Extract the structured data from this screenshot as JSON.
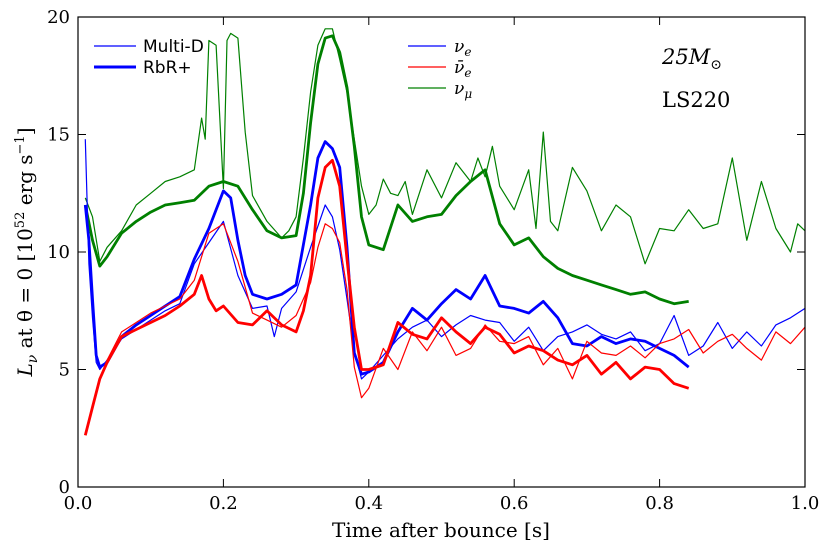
{
  "chart_data": {
    "type": "line",
    "title": "",
    "xlabel": "Time after bounce [s]",
    "ylabel": "L_ν at θ = 0 [10^52 erg s^-1]",
    "ylabel_parts": {
      "L": "L",
      "sub": "ν",
      "mid": " at θ = 0 [10",
      "sup": "52",
      "unit": " erg s",
      "sup2": "−1",
      "end": "]"
    },
    "xlim": [
      0,
      1.0
    ],
    "ylim": [
      0,
      20
    ],
    "xticks": [
      "0.0",
      "0.2",
      "0.4",
      "0.6",
      "0.8",
      "1.0"
    ],
    "xtick_values": [
      0,
      0.2,
      0.4,
      0.6,
      0.8,
      1.0
    ],
    "yticks": [
      "0",
      "5",
      "10",
      "15",
      "20"
    ],
    "ytick_values": [
      0,
      5,
      10,
      15,
      20
    ],
    "legend_style": {
      "location": "top-left",
      "entries": [
        {
          "label": "Multi-D",
          "style": "thin"
        },
        {
          "label": "RbR+",
          "style": "thick"
        }
      ]
    },
    "legend_species": {
      "location": "top-center",
      "entries": [
        {
          "label": "ν_e",
          "base": "ν",
          "sub": "e",
          "bar": false,
          "color": "#0000ff"
        },
        {
          "label": "ν̄_e",
          "base": "ν̄",
          "sub": "e",
          "bar": true,
          "color": "#ff0000"
        },
        {
          "label": "ν_μ",
          "base": "ν",
          "sub": "μ",
          "bar": false,
          "color": "#008000"
        }
      ]
    },
    "annotations": [
      {
        "text": "25M⊙",
        "main": "25M",
        "sub": "⊙"
      },
      {
        "text": "LS220"
      }
    ],
    "series": [
      {
        "name": "ν_μ Multi-D",
        "species": "nu_mu",
        "model": "Multi-D",
        "color": "#008000",
        "width": 1.2,
        "x": [
          0.01,
          0.015,
          0.02,
          0.03,
          0.04,
          0.06,
          0.08,
          0.1,
          0.12,
          0.14,
          0.16,
          0.17,
          0.175,
          0.18,
          0.19,
          0.2,
          0.205,
          0.21,
          0.22,
          0.23,
          0.24,
          0.26,
          0.28,
          0.29,
          0.3,
          0.31,
          0.32,
          0.33,
          0.34,
          0.35,
          0.36,
          0.37,
          0.38,
          0.39,
          0.4,
          0.41,
          0.42,
          0.43,
          0.44,
          0.45,
          0.46,
          0.48,
          0.5,
          0.52,
          0.54,
          0.55,
          0.56,
          0.57,
          0.58,
          0.6,
          0.62,
          0.63,
          0.64,
          0.65,
          0.66,
          0.68,
          0.7,
          0.72,
          0.74,
          0.76,
          0.78,
          0.8,
          0.82,
          0.84,
          0.86,
          0.88,
          0.9,
          0.92,
          0.94,
          0.96,
          0.98,
          0.99,
          1.0
        ],
        "y": [
          12.3,
          11.9,
          11.5,
          9.6,
          10.2,
          10.9,
          12.0,
          12.5,
          13.0,
          13.2,
          13.5,
          15.7,
          14.8,
          19.0,
          18.8,
          12.7,
          19.0,
          19.3,
          19.1,
          15.1,
          12.4,
          11.3,
          10.6,
          10.9,
          11.5,
          14.0,
          16.8,
          18.8,
          19.5,
          19.5,
          18.2,
          16.8,
          14.8,
          12.8,
          11.6,
          12.0,
          13.1,
          12.5,
          12.4,
          13.0,
          11.6,
          13.5,
          12.3,
          13.8,
          13.0,
          14.0,
          13.2,
          14.5,
          12.8,
          11.8,
          13.5,
          11.0,
          15.1,
          11.3,
          10.9,
          13.6,
          12.6,
          10.9,
          12.0,
          11.5,
          9.5,
          11.0,
          10.9,
          11.8,
          11.0,
          11.2,
          14.0,
          10.5,
          13.0,
          11.0,
          10.0,
          11.2,
          10.9
        ]
      },
      {
        "name": "ν_μ RbR+",
        "species": "nu_mu",
        "model": "RbR+",
        "color": "#008000",
        "width": 2.8,
        "x": [
          0.01,
          0.02,
          0.03,
          0.04,
          0.06,
          0.08,
          0.1,
          0.12,
          0.14,
          0.16,
          0.18,
          0.2,
          0.22,
          0.24,
          0.26,
          0.28,
          0.3,
          0.31,
          0.32,
          0.33,
          0.34,
          0.35,
          0.36,
          0.37,
          0.38,
          0.39,
          0.4,
          0.42,
          0.44,
          0.46,
          0.48,
          0.5,
          0.52,
          0.54,
          0.56,
          0.58,
          0.6,
          0.62,
          0.64,
          0.66,
          0.68,
          0.7,
          0.72,
          0.74,
          0.76,
          0.78,
          0.8,
          0.82,
          0.84
        ],
        "y": [
          12.0,
          10.5,
          9.4,
          9.8,
          10.8,
          11.3,
          11.7,
          12.0,
          12.1,
          12.2,
          12.8,
          13.0,
          12.8,
          11.8,
          10.9,
          10.6,
          10.7,
          12.5,
          15.5,
          18.0,
          19.1,
          19.2,
          18.5,
          17.0,
          14.5,
          11.5,
          10.3,
          10.1,
          12.0,
          11.3,
          11.5,
          11.6,
          12.4,
          13.0,
          13.5,
          11.2,
          10.3,
          10.6,
          9.8,
          9.3,
          9.0,
          8.8,
          8.6,
          8.4,
          8.2,
          8.3,
          8.0,
          7.8,
          7.9
        ]
      },
      {
        "name": "ν_e Multi-D",
        "species": "nu_e",
        "model": "Multi-D",
        "color": "#0000ff",
        "width": 1.2,
        "x": [
          0.01,
          0.015,
          0.02,
          0.025,
          0.03,
          0.04,
          0.06,
          0.08,
          0.1,
          0.12,
          0.14,
          0.16,
          0.18,
          0.2,
          0.22,
          0.24,
          0.26,
          0.27,
          0.28,
          0.3,
          0.32,
          0.34,
          0.35,
          0.36,
          0.37,
          0.38,
          0.39,
          0.4,
          0.42,
          0.44,
          0.46,
          0.48,
          0.5,
          0.52,
          0.54,
          0.56,
          0.58,
          0.6,
          0.62,
          0.64,
          0.66,
          0.68,
          0.7,
          0.72,
          0.74,
          0.76,
          0.78,
          0.8,
          0.82,
          0.84,
          0.86,
          0.88,
          0.9,
          0.92,
          0.94,
          0.96,
          0.98,
          1.0
        ],
        "y": [
          14.8,
          9.5,
          7.2,
          5.3,
          5.0,
          5.4,
          6.3,
          6.7,
          7.1,
          7.5,
          7.8,
          9.5,
          10.4,
          11.3,
          9.0,
          7.6,
          7.7,
          6.4,
          7.6,
          8.3,
          10.2,
          12.0,
          11.5,
          10.1,
          8.0,
          5.8,
          4.6,
          4.9,
          5.6,
          6.3,
          6.8,
          7.1,
          6.4,
          6.9,
          7.3,
          7.1,
          7.0,
          6.2,
          6.8,
          5.8,
          6.4,
          6.6,
          6.9,
          6.5,
          6.3,
          6.6,
          5.8,
          6.1,
          7.3,
          5.6,
          6.0,
          7.0,
          5.9,
          6.6,
          6.0,
          6.9,
          7.2,
          7.6
        ]
      },
      {
        "name": "ν_e RbR+",
        "species": "nu_e",
        "model": "RbR+",
        "color": "#0000ff",
        "width": 2.8,
        "x": [
          0.01,
          0.015,
          0.02,
          0.025,
          0.03,
          0.04,
          0.06,
          0.08,
          0.1,
          0.12,
          0.14,
          0.16,
          0.18,
          0.19,
          0.2,
          0.21,
          0.22,
          0.23,
          0.24,
          0.26,
          0.28,
          0.3,
          0.32,
          0.33,
          0.34,
          0.35,
          0.36,
          0.37,
          0.38,
          0.39,
          0.4,
          0.42,
          0.44,
          0.46,
          0.48,
          0.5,
          0.52,
          0.54,
          0.56,
          0.58,
          0.6,
          0.62,
          0.64,
          0.66,
          0.68,
          0.7,
          0.72,
          0.74,
          0.76,
          0.78,
          0.8,
          0.82,
          0.84
        ],
        "y": [
          12.0,
          10.5,
          8.0,
          5.6,
          5.1,
          5.3,
          6.4,
          6.9,
          7.3,
          7.7,
          8.1,
          9.7,
          11.0,
          11.8,
          12.6,
          12.3,
          10.5,
          9.0,
          8.2,
          8.0,
          8.2,
          8.6,
          12.0,
          14.0,
          14.7,
          14.4,
          13.6,
          10.2,
          5.7,
          4.8,
          4.9,
          5.3,
          6.6,
          7.6,
          7.1,
          7.8,
          8.4,
          8.0,
          9.0,
          7.7,
          7.6,
          7.4,
          7.9,
          7.2,
          6.1,
          6.0,
          6.4,
          6.1,
          6.3,
          6.2,
          5.9,
          5.6,
          5.1
        ]
      },
      {
        "name": "ν̄_e Multi-D",
        "species": "nu_e_bar",
        "model": "Multi-D",
        "color": "#ff0000",
        "width": 1.2,
        "x": [
          0.01,
          0.02,
          0.03,
          0.04,
          0.06,
          0.08,
          0.1,
          0.12,
          0.14,
          0.16,
          0.18,
          0.2,
          0.22,
          0.24,
          0.26,
          0.28,
          0.3,
          0.32,
          0.33,
          0.34,
          0.35,
          0.36,
          0.37,
          0.38,
          0.39,
          0.4,
          0.42,
          0.44,
          0.46,
          0.48,
          0.5,
          0.52,
          0.54,
          0.56,
          0.58,
          0.6,
          0.62,
          0.64,
          0.66,
          0.68,
          0.7,
          0.72,
          0.74,
          0.76,
          0.78,
          0.8,
          0.82,
          0.84,
          0.86,
          0.88,
          0.9,
          0.92,
          0.94,
          0.96,
          0.98,
          1.0
        ],
        "y": [
          2.3,
          3.4,
          4.6,
          5.4,
          6.6,
          7.0,
          7.4,
          7.7,
          8.0,
          8.8,
          10.8,
          11.2,
          9.6,
          7.4,
          7.1,
          6.8,
          7.3,
          8.7,
          10.2,
          11.2,
          11.0,
          10.4,
          8.4,
          5.1,
          3.8,
          4.2,
          5.9,
          5.0,
          6.6,
          5.8,
          6.8,
          5.6,
          5.9,
          6.9,
          6.2,
          6.1,
          6.4,
          5.2,
          5.9,
          4.6,
          6.2,
          5.7,
          5.6,
          6.0,
          5.5,
          6.1,
          6.3,
          6.7,
          5.7,
          6.2,
          6.5,
          5.9,
          5.4,
          6.6,
          6.1,
          6.8
        ]
      },
      {
        "name": "ν̄_e RbR+",
        "species": "nu_e_bar",
        "model": "RbR+",
        "color": "#ff0000",
        "width": 2.8,
        "x": [
          0.01,
          0.02,
          0.03,
          0.04,
          0.06,
          0.08,
          0.1,
          0.12,
          0.14,
          0.16,
          0.17,
          0.18,
          0.19,
          0.2,
          0.22,
          0.24,
          0.26,
          0.28,
          0.3,
          0.31,
          0.32,
          0.33,
          0.34,
          0.35,
          0.36,
          0.37,
          0.38,
          0.39,
          0.4,
          0.42,
          0.44,
          0.46,
          0.48,
          0.5,
          0.52,
          0.54,
          0.56,
          0.58,
          0.6,
          0.62,
          0.64,
          0.66,
          0.68,
          0.7,
          0.72,
          0.74,
          0.76,
          0.78,
          0.8,
          0.82,
          0.84
        ],
        "y": [
          2.2,
          3.4,
          4.6,
          5.3,
          6.4,
          6.7,
          7.0,
          7.3,
          7.7,
          8.2,
          9.0,
          8.0,
          7.5,
          7.7,
          7.0,
          6.9,
          7.5,
          6.9,
          6.6,
          7.5,
          9.0,
          12.3,
          13.6,
          13.9,
          12.8,
          9.7,
          6.8,
          5.0,
          5.0,
          5.2,
          7.0,
          6.5,
          6.3,
          7.2,
          6.6,
          6.1,
          6.8,
          6.5,
          5.7,
          6.0,
          5.8,
          5.4,
          5.2,
          5.6,
          4.8,
          5.3,
          4.6,
          5.1,
          5.0,
          4.4,
          4.2
        ]
      }
    ]
  }
}
